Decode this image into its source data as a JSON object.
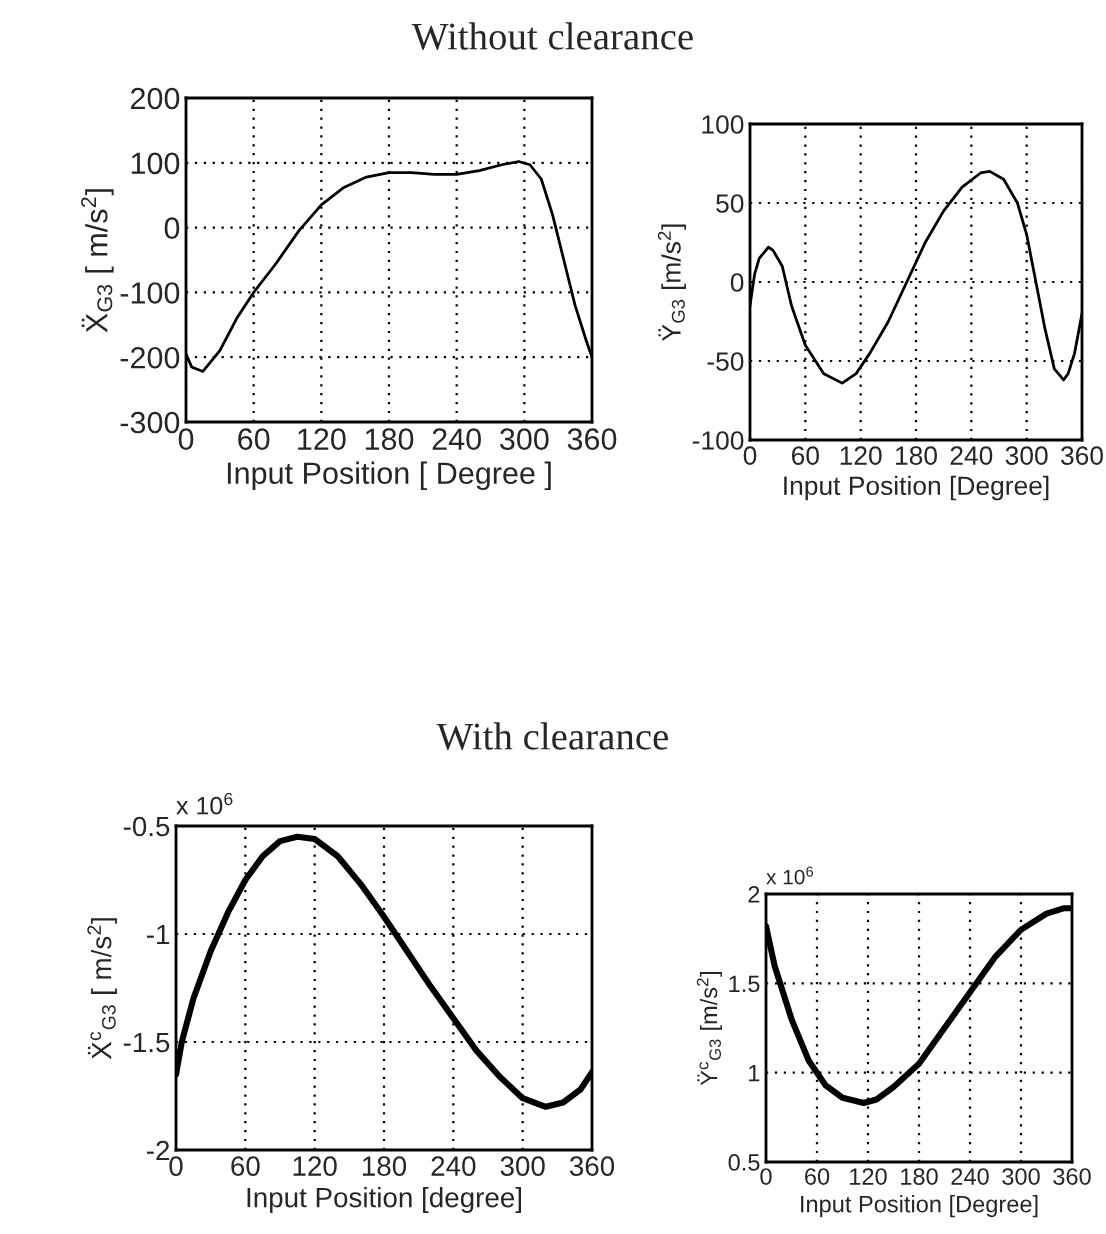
{
  "chart_data": [
    {
      "type": "line",
      "title": "Without clearance",
      "xlabel": "Input Position [ Degree ]",
      "ylabel": "Ẍ$_{G3}$ [ m/s$^{2}$]",
      "xlim": [
        0,
        360
      ],
      "ylim": [
        -300,
        200
      ],
      "xticks": [
        0,
        60,
        120,
        180,
        240,
        300,
        360
      ],
      "yticks": [
        -300,
        -200,
        -100,
        0,
        100,
        200
      ],
      "grid": true,
      "marker": "none",
      "line_style": "solid",
      "series": [
        {
          "color": "#000000",
          "x": [
            0,
            5,
            15,
            30,
            45,
            60,
            80,
            100,
            120,
            140,
            160,
            180,
            200,
            220,
            240,
            260,
            280,
            295,
            305,
            315,
            325,
            335,
            345,
            355,
            360
          ],
          "values": [
            -195,
            -215,
            -222,
            -190,
            -140,
            -100,
            -55,
            -5,
            35,
            62,
            78,
            85,
            85,
            82,
            82,
            88,
            97,
            102,
            97,
            75,
            20,
            -50,
            -120,
            -175,
            -200
          ]
        }
      ]
    },
    {
      "type": "line",
      "xlabel": "Input Position [Degree]",
      "ylabel": "Ÿ$_{G3}$ [m/s$^{2}$]",
      "xlim": [
        0,
        360
      ],
      "ylim": [
        -100,
        100
      ],
      "xticks": [
        0,
        60,
        120,
        180,
        240,
        300,
        360
      ],
      "yticks": [
        -100,
        -50,
        0,
        50,
        100
      ],
      "grid": true,
      "marker": "none",
      "line_style": "solid",
      "series": [
        {
          "color": "#000000",
          "x": [
            0,
            5,
            10,
            20,
            25,
            35,
            45,
            60,
            80,
            100,
            115,
            130,
            150,
            170,
            190,
            210,
            230,
            250,
            260,
            275,
            290,
            300,
            310,
            320,
            330,
            340,
            345,
            352,
            360
          ],
          "values": [
            -15,
            5,
            15,
            22,
            20,
            10,
            -15,
            -40,
            -58,
            -64,
            -58,
            -45,
            -25,
            0,
            25,
            45,
            60,
            69,
            70,
            65,
            50,
            30,
            0,
            -30,
            -55,
            -62,
            -58,
            -45,
            -20
          ]
        }
      ]
    },
    {
      "type": "line",
      "title": "With clearance",
      "xlabel": "Input Position [degree]",
      "ylabel": "Ẍ$^{c}$$_{G3}$ [ m/s$^{2}$]",
      "annotations": [
        "x 10$^{6}$"
      ],
      "xlim": [
        0,
        360
      ],
      "ylim": [
        -2,
        -0.5
      ],
      "xticks": [
        0,
        60,
        120,
        180,
        240,
        300,
        360
      ],
      "yticks": [
        -2,
        {
          "value": -1.5,
          "label": "-1.5"
        },
        -1,
        {
          "value": -0.5,
          "label": "-0.5"
        }
      ],
      "grid": true,
      "marker": "none",
      "line_style": "solid",
      "series": [
        {
          "color": "#000000",
          "x": [
            0,
            5,
            15,
            30,
            45,
            60,
            75,
            90,
            105,
            120,
            140,
            160,
            180,
            200,
            220,
            240,
            260,
            280,
            300,
            320,
            335,
            350,
            360
          ],
          "values": [
            -1.65,
            -1.5,
            -1.3,
            -1.08,
            -0.9,
            -0.75,
            -0.64,
            -0.57,
            -0.55,
            -0.56,
            -0.64,
            -0.77,
            -0.92,
            -1.08,
            -1.24,
            -1.39,
            -1.54,
            -1.66,
            -1.76,
            -1.8,
            -1.78,
            -1.72,
            -1.64
          ]
        }
      ]
    },
    {
      "type": "line",
      "xlabel": "Input Position [Degree]",
      "ylabel": "Ÿ$^{c}$$_{G3}$ [m/s$^{2}$]",
      "annotations": [
        "x 10$^{6}$"
      ],
      "xlim": [
        0,
        360
      ],
      "ylim": [
        0.5,
        2
      ],
      "xticks": [
        0,
        60,
        120,
        180,
        240,
        300,
        360
      ],
      "yticks": [
        {
          "value": 0.5,
          "label": "0.5"
        },
        1,
        {
          "value": 1.5,
          "label": "1.5"
        },
        2
      ],
      "grid": true,
      "marker": "none",
      "line_style": "solid",
      "series": [
        {
          "color": "#000000",
          "x": [
            0,
            10,
            30,
            50,
            70,
            90,
            115,
            130,
            150,
            180,
            210,
            240,
            270,
            300,
            330,
            350,
            360
          ],
          "values": [
            1.82,
            1.6,
            1.3,
            1.07,
            0.93,
            0.86,
            0.83,
            0.85,
            0.92,
            1.05,
            1.25,
            1.45,
            1.65,
            1.8,
            1.89,
            1.92,
            1.92
          ]
        }
      ]
    }
  ]
}
